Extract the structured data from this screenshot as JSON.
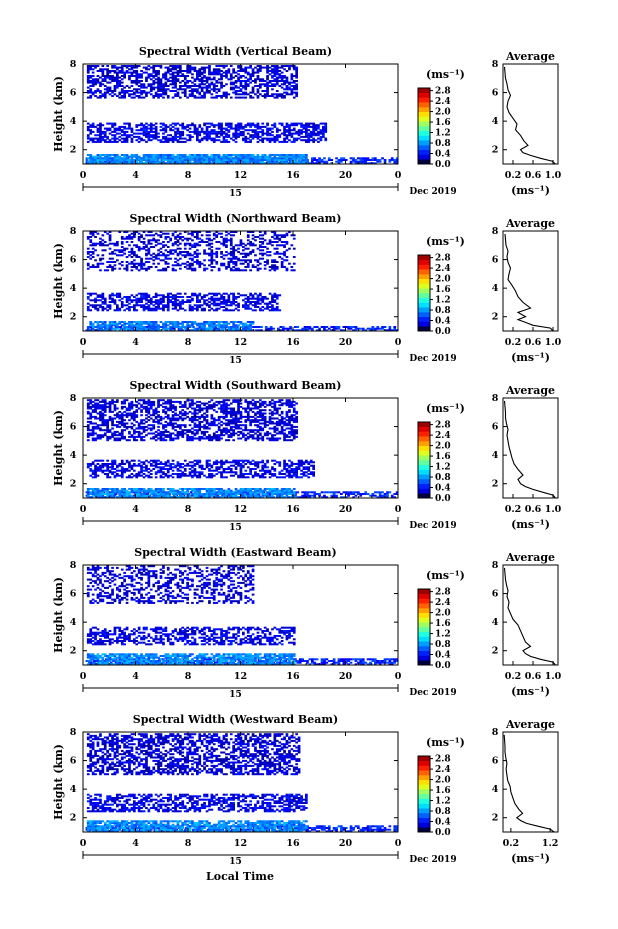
{
  "figure": {
    "xlabel": "Local Time",
    "date_label": "Dec 2019",
    "day_label": "15",
    "ylabel": "Height (km)",
    "units_label": "(ms⁻¹)",
    "average_title": "Average"
  },
  "chart_data": [
    {
      "type": "heatmap",
      "title": "Spectral Width (Vertical Beam)",
      "xlabel": "Local Time",
      "ylabel": "Height (km)",
      "xlim": [
        0,
        24
      ],
      "ylim": [
        1,
        8
      ],
      "xticks": [
        "0",
        "4",
        "8",
        "12",
        "16",
        "20",
        "0"
      ],
      "yticks": [
        "2",
        "4",
        "6",
        "8"
      ],
      "colorbar": {
        "ticks": [
          "0.0",
          "0.4",
          "0.8",
          "1.2",
          "1.6",
          "2.0",
          "2.4",
          "2.8"
        ],
        "range": [
          0,
          2.9
        ]
      },
      "layers": [
        {
          "x0": 0.2,
          "x1": 24,
          "y0": 1.0,
          "y1": 1.45,
          "v": 0.5,
          "density": 0.7
        },
        {
          "x0": 0.3,
          "x1": 17,
          "y0": 1.0,
          "y1": 1.7,
          "v": 0.75,
          "density": 0.9
        },
        {
          "x0": 0.3,
          "x1": 18.5,
          "y0": 2.5,
          "y1": 3.9,
          "v": 0.3,
          "density": 0.6
        },
        {
          "x0": 0.3,
          "x1": 16.3,
          "y0": 5.6,
          "y1": 7.9,
          "v": 0.25,
          "density": 0.55
        }
      ],
      "average_profile": {
        "xlim": [
          0,
          1.1
        ],
        "xticks": [
          "0.2",
          "0.6",
          "1.0"
        ],
        "ylim": [
          1,
          8
        ],
        "yticks": [
          "2",
          "4",
          "6",
          "8"
        ],
        "height": [
          1.0,
          1.2,
          1.4,
          1.6,
          1.8,
          2.0,
          2.3,
          2.6,
          3.0,
          3.4,
          3.8,
          4.2,
          4.6,
          5.0,
          5.4,
          5.8,
          6.2,
          6.6,
          7.0,
          7.4,
          7.8
        ],
        "width": [
          1.05,
          0.98,
          0.75,
          0.55,
          0.4,
          0.35,
          0.5,
          0.42,
          0.35,
          0.25,
          0.28,
          0.2,
          0.12,
          0.08,
          0.1,
          0.15,
          0.1,
          0.08,
          0.05,
          0.04,
          0.03
        ]
      }
    },
    {
      "type": "heatmap",
      "title": "Spectral Width (Northward Beam)",
      "xlabel": "Local Time",
      "ylabel": "Height (km)",
      "xlim": [
        0,
        24
      ],
      "ylim": [
        1,
        8
      ],
      "xticks": [
        "0",
        "4",
        "8",
        "12",
        "16",
        "20",
        "0"
      ],
      "yticks": [
        "2",
        "4",
        "6",
        "8"
      ],
      "colorbar": {
        "ticks": [
          "0.0",
          "0.4",
          "0.8",
          "1.2",
          "1.6",
          "2.0",
          "2.4",
          "2.8"
        ],
        "range": [
          0,
          2.9
        ]
      },
      "layers": [
        {
          "x0": 0.2,
          "x1": 24,
          "y0": 1.0,
          "y1": 1.35,
          "v": 0.45,
          "density": 0.6
        },
        {
          "x0": 0.3,
          "x1": 13,
          "y0": 1.0,
          "y1": 1.6,
          "v": 0.7,
          "density": 0.75
        },
        {
          "x0": 0.3,
          "x1": 15,
          "y0": 2.4,
          "y1": 3.6,
          "v": 0.3,
          "density": 0.55
        },
        {
          "x0": 0.3,
          "x1": 16,
          "y0": 5.2,
          "y1": 7.9,
          "v": 0.25,
          "density": 0.35
        }
      ],
      "average_profile": {
        "xlim": [
          0,
          1.1
        ],
        "xticks": [
          "0.2",
          "0.6",
          "1.0"
        ],
        "ylim": [
          1,
          8
        ],
        "yticks": [
          "2",
          "4",
          "6",
          "8"
        ],
        "height": [
          1.0,
          1.2,
          1.4,
          1.6,
          1.8,
          2.0,
          2.3,
          2.6,
          3.0,
          3.4,
          3.8,
          4.2,
          4.6,
          5.0,
          5.4,
          5.8,
          6.2,
          6.6,
          7.0,
          7.4,
          7.8
        ],
        "width": [
          1.0,
          0.95,
          0.6,
          0.45,
          0.3,
          0.45,
          0.3,
          0.55,
          0.4,
          0.3,
          0.25,
          0.18,
          0.1,
          0.12,
          0.15,
          0.1,
          0.08,
          0.1,
          0.06,
          0.05,
          0.04
        ]
      }
    },
    {
      "type": "heatmap",
      "title": "Spectral Width (Southward Beam)",
      "xlabel": "Local Time",
      "ylabel": "Height (km)",
      "xlim": [
        0,
        24
      ],
      "ylim": [
        1,
        8
      ],
      "xticks": [
        "0",
        "4",
        "8",
        "12",
        "16",
        "20",
        "0"
      ],
      "yticks": [
        "2",
        "4",
        "6",
        "8"
      ],
      "colorbar": {
        "ticks": [
          "0.0",
          "0.4",
          "0.8",
          "1.2",
          "1.6",
          "2.0",
          "2.4",
          "2.8"
        ],
        "range": [
          0,
          2.9
        ]
      },
      "layers": [
        {
          "x0": 0.2,
          "x1": 24,
          "y0": 1.0,
          "y1": 1.4,
          "v": 0.45,
          "density": 0.6
        },
        {
          "x0": 0.3,
          "x1": 16,
          "y0": 1.0,
          "y1": 1.7,
          "v": 0.75,
          "density": 0.8
        },
        {
          "x0": 0.3,
          "x1": 17.5,
          "y0": 2.4,
          "y1": 3.6,
          "v": 0.3,
          "density": 0.55
        },
        {
          "x0": 0.3,
          "x1": 16.3,
          "y0": 5.0,
          "y1": 7.9,
          "v": 0.25,
          "density": 0.55
        }
      ],
      "average_profile": {
        "xlim": [
          0,
          1.1
        ],
        "xticks": [
          "0.2",
          "0.6",
          "1.0"
        ],
        "ylim": [
          1,
          8
        ],
        "yticks": [
          "2",
          "4",
          "6",
          "8"
        ],
        "height": [
          1.0,
          1.2,
          1.4,
          1.6,
          1.8,
          2.0,
          2.3,
          2.6,
          3.0,
          3.4,
          3.8,
          4.2,
          4.6,
          5.0,
          5.4,
          5.8,
          6.2,
          6.6,
          7.0,
          7.4,
          7.8
        ],
        "width": [
          1.05,
          1.0,
          0.8,
          0.6,
          0.45,
          0.35,
          0.3,
          0.4,
          0.3,
          0.22,
          0.18,
          0.15,
          0.12,
          0.1,
          0.08,
          0.1,
          0.07,
          0.05,
          0.05,
          0.04,
          0.03
        ]
      }
    },
    {
      "type": "heatmap",
      "title": "Spectral Width (Eastward Beam)",
      "xlabel": "Local Time",
      "ylabel": "Height (km)",
      "xlim": [
        0,
        24
      ],
      "ylim": [
        1,
        8
      ],
      "xticks": [
        "0",
        "4",
        "8",
        "12",
        "16",
        "20",
        "0"
      ],
      "yticks": [
        "2",
        "4",
        "6",
        "8"
      ],
      "colorbar": {
        "ticks": [
          "0.0",
          "0.4",
          "0.8",
          "1.2",
          "1.6",
          "2.0",
          "2.4",
          "2.8"
        ],
        "range": [
          0,
          2.9
        ]
      },
      "layers": [
        {
          "x0": 0.2,
          "x1": 24,
          "y0": 1.0,
          "y1": 1.4,
          "v": 0.45,
          "density": 0.6
        },
        {
          "x0": 0.3,
          "x1": 16,
          "y0": 1.0,
          "y1": 1.75,
          "v": 0.75,
          "density": 0.8
        },
        {
          "x0": 0.3,
          "x1": 16,
          "y0": 2.4,
          "y1": 3.6,
          "v": 0.3,
          "density": 0.5
        },
        {
          "x0": 0.3,
          "x1": 13,
          "y0": 5.3,
          "y1": 7.9,
          "v": 0.25,
          "density": 0.4
        }
      ],
      "average_profile": {
        "xlim": [
          0,
          1.1
        ],
        "xticks": [
          "0.2",
          "0.6",
          "1.0"
        ],
        "ylim": [
          1,
          8
        ],
        "yticks": [
          "2",
          "4",
          "6",
          "8"
        ],
        "height": [
          1.0,
          1.2,
          1.4,
          1.6,
          1.8,
          2.0,
          2.3,
          2.6,
          3.0,
          3.4,
          3.8,
          4.2,
          4.6,
          5.0,
          5.4,
          5.8,
          6.2,
          6.6,
          7.0,
          7.4,
          7.8
        ],
        "width": [
          1.05,
          1.0,
          0.75,
          0.55,
          0.45,
          0.4,
          0.55,
          0.45,
          0.4,
          0.35,
          0.3,
          0.2,
          0.15,
          0.1,
          0.12,
          0.08,
          0.1,
          0.07,
          0.05,
          0.04,
          0.03
        ]
      }
    },
    {
      "type": "heatmap",
      "title": "Spectral Width (Westward Beam)",
      "xlabel": "Local Time",
      "ylabel": "Height (km)",
      "xlim": [
        0,
        24
      ],
      "ylim": [
        1,
        8
      ],
      "xticks": [
        "0",
        "4",
        "8",
        "12",
        "16",
        "20",
        "0"
      ],
      "yticks": [
        "2",
        "4",
        "6",
        "8"
      ],
      "colorbar": {
        "ticks": [
          "0.0",
          "0.4",
          "0.8",
          "1.2",
          "1.6",
          "2.0",
          "2.4",
          "2.8"
        ],
        "range": [
          0,
          2.9
        ]
      },
      "layers": [
        {
          "x0": 0.2,
          "x1": 24,
          "y0": 1.0,
          "y1": 1.4,
          "v": 0.45,
          "density": 0.6
        },
        {
          "x0": 0.3,
          "x1": 17,
          "y0": 1.0,
          "y1": 1.75,
          "v": 0.75,
          "density": 0.8
        },
        {
          "x0": 0.3,
          "x1": 17,
          "y0": 2.4,
          "y1": 3.6,
          "v": 0.3,
          "density": 0.55
        },
        {
          "x0": 0.3,
          "x1": 16.5,
          "y0": 5.0,
          "y1": 7.9,
          "v": 0.25,
          "density": 0.55
        }
      ],
      "average_profile": {
        "xlim": [
          0,
          1.4
        ],
        "xticks": [
          "0.2",
          "1.2"
        ],
        "ylim": [
          1,
          8
        ],
        "yticks": [
          "2",
          "4",
          "6",
          "8"
        ],
        "height": [
          1.0,
          1.2,
          1.4,
          1.6,
          1.8,
          2.0,
          2.3,
          2.6,
          3.0,
          3.4,
          3.8,
          4.2,
          4.6,
          5.0,
          5.4,
          5.8,
          6.2,
          6.6,
          7.0,
          7.4,
          7.8
        ],
        "width": [
          1.3,
          1.2,
          0.9,
          0.6,
          0.45,
          0.35,
          0.5,
          0.4,
          0.3,
          0.25,
          0.2,
          0.18,
          0.12,
          0.1,
          0.08,
          0.1,
          0.07,
          0.05,
          0.05,
          0.04,
          0.03
        ]
      }
    }
  ]
}
